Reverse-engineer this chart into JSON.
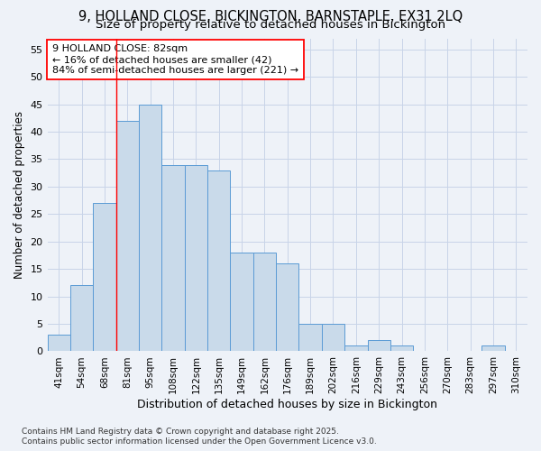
{
  "title_line1": "9, HOLLAND CLOSE, BICKINGTON, BARNSTAPLE, EX31 2LQ",
  "title_line2": "Size of property relative to detached houses in Bickington",
  "xlabel": "Distribution of detached houses by size in Bickington",
  "ylabel": "Number of detached properties",
  "footer_line1": "Contains HM Land Registry data © Crown copyright and database right 2025.",
  "footer_line2": "Contains public sector information licensed under the Open Government Licence v3.0.",
  "categories": [
    "41sqm",
    "54sqm",
    "68sqm",
    "81sqm",
    "95sqm",
    "108sqm",
    "122sqm",
    "135sqm",
    "149sqm",
    "162sqm",
    "176sqm",
    "189sqm",
    "202sqm",
    "216sqm",
    "229sqm",
    "243sqm",
    "256sqm",
    "270sqm",
    "283sqm",
    "297sqm",
    "310sqm"
  ],
  "values": [
    3,
    12,
    27,
    42,
    45,
    34,
    34,
    33,
    18,
    18,
    16,
    5,
    5,
    1,
    2,
    1,
    0,
    0,
    0,
    1,
    0
  ],
  "bar_color": "#c9daea",
  "bar_edge_color": "#5b9bd5",
  "grid_color": "#c8d4e8",
  "annotation_text": "9 HOLLAND CLOSE: 82sqm\n← 16% of detached houses are smaller (42)\n84% of semi-detached houses are larger (221) →",
  "annotation_box_color": "white",
  "annotation_box_edge_color": "red",
  "redline_x": 2.5,
  "ylim": [
    0,
    57
  ],
  "yticks": [
    0,
    5,
    10,
    15,
    20,
    25,
    30,
    35,
    40,
    45,
    50,
    55
  ],
  "bg_color": "#eef2f8",
  "title_fontsize": 10.5,
  "subtitle_fontsize": 9.5,
  "tick_fontsize": 7.5,
  "ylabel_fontsize": 8.5,
  "xlabel_fontsize": 9,
  "ann_fontsize": 8,
  "footer_fontsize": 6.5
}
